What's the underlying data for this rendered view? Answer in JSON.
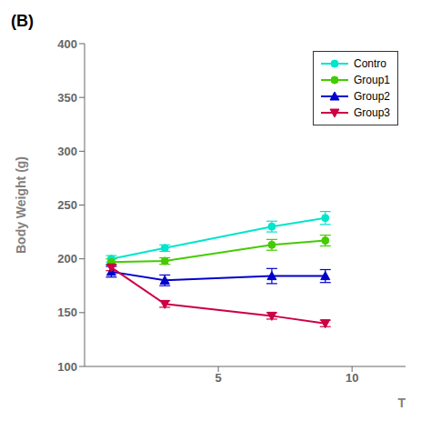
{
  "chart_data": {
    "type": "line",
    "title": "(B)",
    "x_label": "T",
    "y_label": "Body Weight (g)",
    "x": [
      1,
      3,
      7,
      9
    ],
    "xlim": [
      0,
      12
    ],
    "xticks": [
      5,
      10
    ],
    "ylim": [
      100,
      400
    ],
    "yticks": [
      100,
      150,
      200,
      250,
      300,
      350,
      400
    ],
    "grid": false,
    "legend": "upper right",
    "series": [
      {
        "name": "Contro",
        "color": "#00e5cc",
        "marker": "circle",
        "values": [
          200,
          210,
          230,
          238
        ],
        "yerr": [
          3,
          3,
          5,
          6
        ]
      },
      {
        "name": "Group1",
        "color": "#44cc00",
        "marker": "circle",
        "values": [
          197,
          198,
          213,
          217
        ],
        "yerr": [
          3,
          3,
          5,
          5
        ]
      },
      {
        "name": "Group2",
        "color": "#0000cc",
        "marker": "triangle_up",
        "values": [
          188,
          180,
          184,
          184
        ],
        "yerr": [
          5,
          5,
          7,
          6
        ]
      },
      {
        "name": "Group3",
        "color": "#cc0044",
        "marker": "triangle_down",
        "values": [
          192,
          158,
          147,
          140
        ],
        "yerr": [
          3,
          3,
          3,
          3
        ]
      }
    ]
  }
}
